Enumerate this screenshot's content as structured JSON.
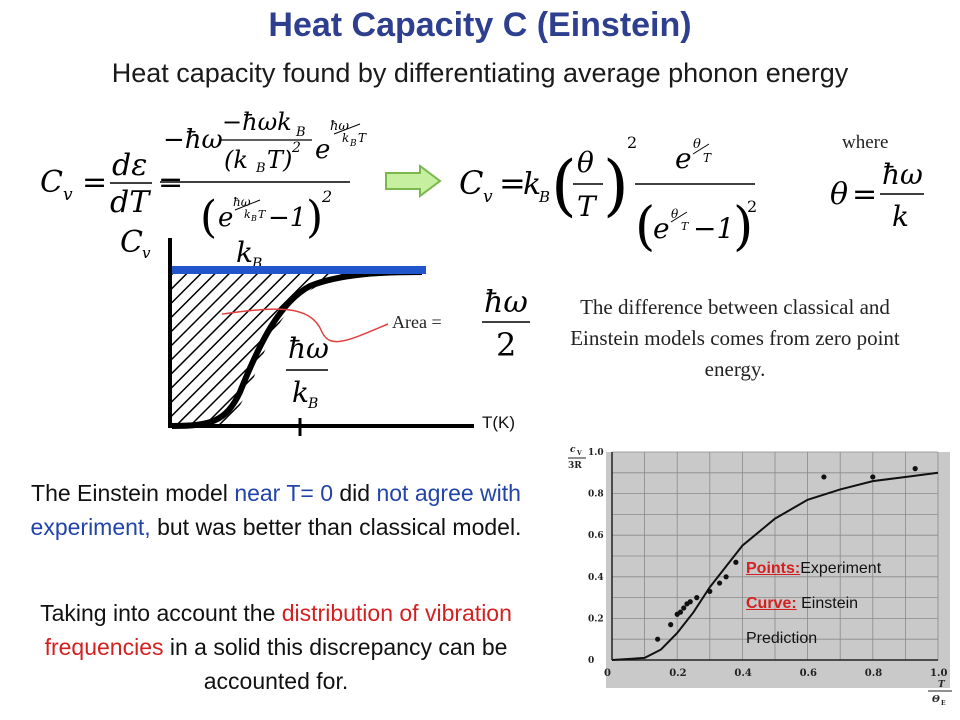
{
  "title": "Heat Capacity C (Einstein)",
  "subtitle": "Heat capacity found by differentiating average phonon energy",
  "where_label": "where",
  "equation_eq_left": {
    "lhs": "C",
    "lhs_sub": "v",
    "d_eps": "dε",
    "d_T": "dT",
    "minus_hw": "−ħω",
    "neg_hw_kb": "−ħωk",
    "kb_sub": "B",
    "kbt": "(k",
    "e_char": "e",
    "minus_one": "−1",
    "k": "k",
    "T": "T)"
  },
  "equation_right": {
    "lhs": "C",
    "lhs_sub": "v",
    "equals": "=",
    "k": "k",
    "kb_sub": "B",
    "theta": "θ",
    "T": "T",
    "e_char": "e",
    "minus_one": "−1"
  },
  "theta_def": {
    "theta": "θ",
    "equals": "=",
    "numerator": "ħω",
    "denominator": "k"
  },
  "graph": {
    "cv_label": "C",
    "cv_sub": "v",
    "area_label": "Area =",
    "area_numerator": "ħω",
    "area_denominator": "2",
    "hw_numerator": "ħω",
    "hw_denominator": "k",
    "hw_sub": "B",
    "x_axis_label": "T(K)"
  },
  "difference_text": "The difference between classical and Einstein models comes from zero point energy.",
  "einstein_paragraph": {
    "part1": "The Einstein model ",
    "part2": "near T= 0",
    "part3": " did ",
    "part4": "not agree with experiment,",
    "part5": " but was better than classical model."
  },
  "distribution_paragraph": {
    "part1": "Taking into account the ",
    "part2": "distribution of vibration frequencies",
    "part3": " in a solid this discrepancy can be accounted for."
  },
  "experiment_chart": {
    "y_axis_label_top": "c",
    "y_axis_label_sub": "V",
    "y_axis_label_bottom": "3R",
    "y_ticks": [
      "1.0",
      "0.8",
      "0.6",
      "0.4",
      "0.2",
      "0"
    ],
    "x_ticks": [
      "0",
      "0.2",
      "0.4",
      "0.6",
      "0.8",
      "1.0"
    ],
    "x_axis_label_top": "T",
    "x_axis_label_bottom": "Θ",
    "x_axis_label_sub": "E",
    "legend_points_key": "Points:",
    "legend_points_value": "Experiment",
    "legend_curve_key": "Curve:",
    "legend_curve_value": " Einstein",
    "legend_curve_value2": "Prediction"
  },
  "chart_data": {
    "type": "scatter",
    "xlabel": "T/Θ_E",
    "ylabel": "c_V/3R",
    "xlim": [
      0,
      1.0
    ],
    "ylim": [
      0,
      1.0
    ],
    "series": [
      {
        "name": "Experiment",
        "x": [
          0.14,
          0.18,
          0.2,
          0.21,
          0.22,
          0.23,
          0.24,
          0.26,
          0.3,
          0.33,
          0.35,
          0.38,
          0.65,
          0.8,
          0.93
        ],
        "y": [
          0.1,
          0.17,
          0.22,
          0.23,
          0.25,
          0.27,
          0.28,
          0.3,
          0.33,
          0.37,
          0.4,
          0.47,
          0.88,
          0.88,
          0.92
        ]
      },
      {
        "name": "Einstein Prediction",
        "x": [
          0.0,
          0.1,
          0.15,
          0.2,
          0.25,
          0.3,
          0.35,
          0.4,
          0.5,
          0.6,
          0.7,
          0.8,
          0.9,
          1.0
        ],
        "y": [
          0.0,
          0.01,
          0.05,
          0.13,
          0.23,
          0.35,
          0.45,
          0.55,
          0.68,
          0.77,
          0.82,
          0.86,
          0.88,
          0.9
        ]
      }
    ]
  },
  "colors": {
    "title": "#2f3f8f",
    "blue_text": "#2244aa",
    "red_text": "#d42020",
    "classical_line": "#2255cc",
    "arrow_fill": "#c6f0a0",
    "arrow_stroke": "#7ab84c"
  }
}
